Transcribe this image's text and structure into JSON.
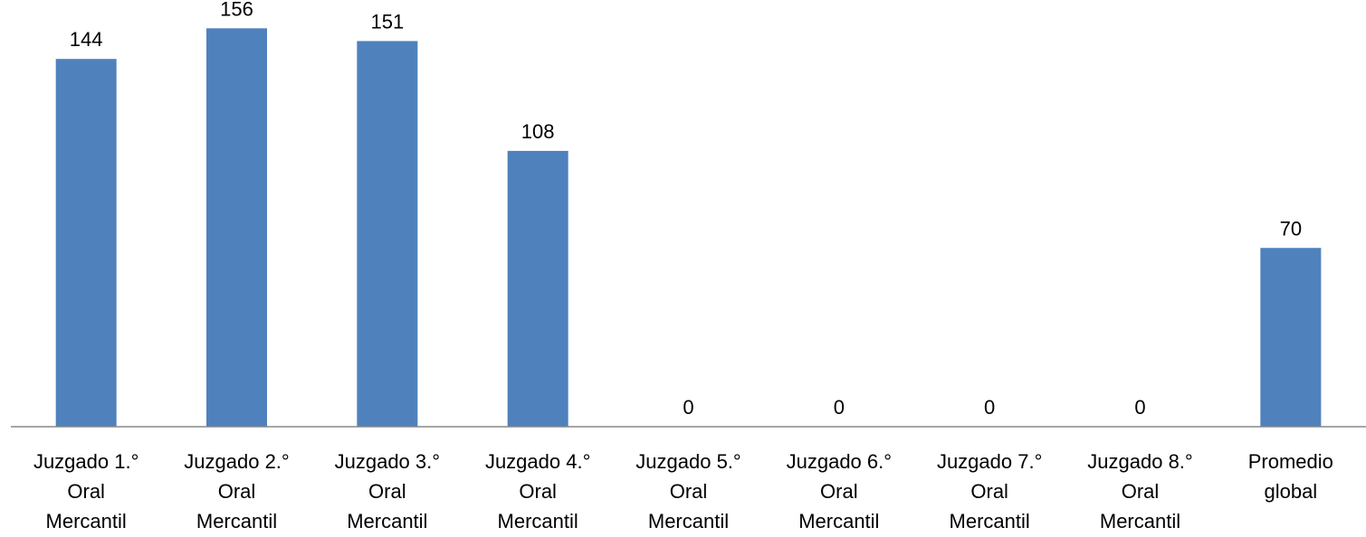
{
  "chart_data": {
    "type": "bar",
    "title": "",
    "xlabel": "",
    "ylabel": "",
    "ylim": [
      0,
      160
    ],
    "grid": false,
    "legend": "none",
    "bar_color": "#4F81BD",
    "axis_color": "#888888",
    "categories": [
      [
        "Juzgado 1.°",
        "Oral",
        "Mercantil"
      ],
      [
        "Juzgado 2.°",
        "Oral",
        "Mercantil"
      ],
      [
        "Juzgado 3.°",
        "Oral",
        "Mercantil"
      ],
      [
        "Juzgado 4.°",
        "Oral",
        "Mercantil"
      ],
      [
        "Juzgado 5.°",
        "Oral",
        "Mercantil"
      ],
      [
        "Juzgado 6.°",
        "Oral",
        "Mercantil"
      ],
      [
        "Juzgado 7.°",
        "Oral",
        "Mercantil"
      ],
      [
        "Juzgado 8.°",
        "Oral",
        "Mercantil"
      ],
      [
        "Promedio",
        "global"
      ]
    ],
    "values": [
      144,
      156,
      151,
      108,
      0,
      0,
      0,
      0,
      70
    ],
    "data_labels": [
      "144",
      "156",
      "151",
      "108",
      "0",
      "0",
      "0",
      "0",
      "70"
    ]
  }
}
